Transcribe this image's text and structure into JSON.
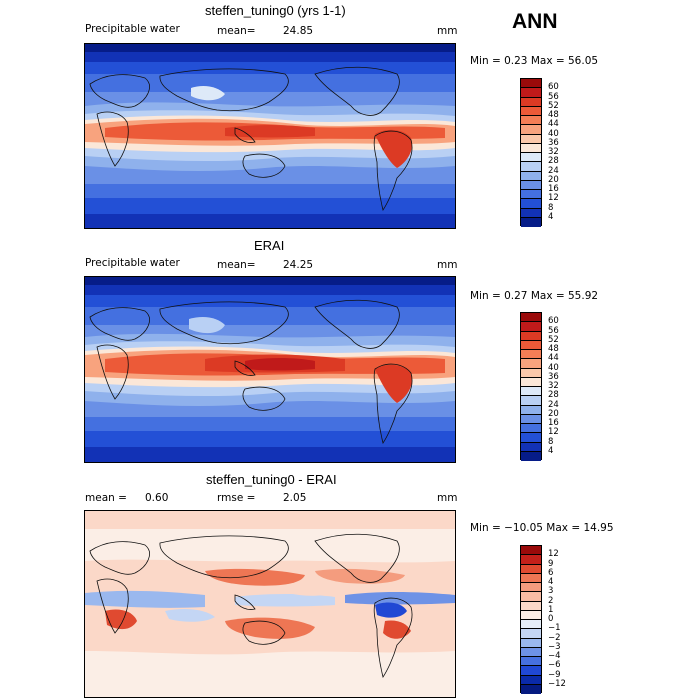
{
  "season": "ANN",
  "panels": [
    {
      "title": "steffen_tuning0 (yrs 1-1)",
      "variable": "Precipitable water",
      "stat_label": "mean=",
      "stat_value": "24.85",
      "units": "mm",
      "minmax": "Min =    0.23 Max =   56.05",
      "levels": [
        "60",
        "56",
        "52",
        "48",
        "44",
        "40",
        "36",
        "32",
        "28",
        "24",
        "20",
        "16",
        "12",
        "8",
        "4"
      ],
      "colors": [
        "#9a0a0a",
        "#c01a1a",
        "#dc3a24",
        "#ec5a38",
        "#f47e56",
        "#f8a37e",
        "#fbc8aa",
        "#fbe7d8",
        "#dde9f8",
        "#b9d0f4",
        "#8fb1ec",
        "#6a90e6",
        "#4470e0",
        "#2350d6",
        "#1232b6",
        "#061c88"
      ]
    },
    {
      "title": "ERAI",
      "variable": "Precipitable water",
      "stat_label": "mean=",
      "stat_value": "24.25",
      "units": "mm",
      "minmax": "Min =    0.27 Max =   55.92",
      "levels": [
        "60",
        "56",
        "52",
        "48",
        "44",
        "40",
        "36",
        "32",
        "28",
        "24",
        "20",
        "16",
        "12",
        "8",
        "4"
      ],
      "colors": [
        "#9a0a0a",
        "#c01a1a",
        "#dc3a24",
        "#ec5a38",
        "#f47e56",
        "#f8a37e",
        "#fbc8aa",
        "#fbe7d8",
        "#dde9f8",
        "#b9d0f4",
        "#8fb1ec",
        "#6a90e6",
        "#4470e0",
        "#2350d6",
        "#1232b6",
        "#061c88"
      ]
    },
    {
      "title": "steffen_tuning0 - ERAI",
      "mean_label": "mean =",
      "mean_value": "0.60",
      "rmse_label": "rmse =",
      "rmse_value": "2.05",
      "units": "mm",
      "minmax": "Min = −10.05 Max =   14.95",
      "levels": [
        "12",
        "9",
        "6",
        "4",
        "3",
        "2",
        "1",
        "0",
        "−1",
        "−2",
        "−3",
        "−4",
        "−6",
        "−9",
        "−12"
      ],
      "colors": [
        "#9a0a0a",
        "#c4201a",
        "#e04a30",
        "#ee7654",
        "#f49c7e",
        "#f8bca4",
        "#fbd8c8",
        "#fbeee6",
        "#e6eef8",
        "#c4d6f4",
        "#9ab8ee",
        "#6e92e6",
        "#4670e0",
        "#2048d4",
        "#0a2aa8",
        "#051a80"
      ]
    }
  ]
}
